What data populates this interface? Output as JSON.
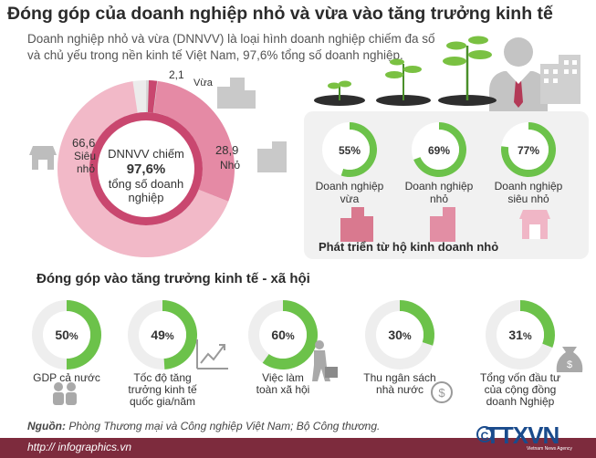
{
  "title": "Đóng góp của doanh nghiệp nhỏ và vừa vào tăng trưởng kinh tế",
  "intro": {
    "line1": "Doanh nghiệp nhỏ và vừa (DNNVV) là loại hình doanh nghiệp chiếm đa số",
    "line2": "và chủ yếu trong nền kinh tế Việt Nam, 97,6% tổng số doanh nghiệp."
  },
  "colors": {
    "accent_green": "#6cc24a",
    "pink_light": "#f2b9c8",
    "pink_mid": "#e58aa5",
    "pink_dark": "#c9476f",
    "maroon": "#7d2b3d"
  },
  "chart_data": [
    {
      "type": "pie",
      "categories": [
        "Siêu nhỏ",
        "Nhỏ",
        "Vừa"
      ],
      "values": [
        66.6,
        28.9,
        2.1
      ],
      "labels": {
        "vua_value": "2,1",
        "vua_name": "Vừa",
        "nho_value": "28,9",
        "nho_name": "Nhỏ",
        "sieunho_value": "66,6",
        "sieunho_name1": "Siêu",
        "sieunho_name2": "nhỏ"
      },
      "center": {
        "line1": "DNNVV chiếm",
        "value": "97,6",
        "unit": "%",
        "line2": "tổng số doanh",
        "line3": "nghiệp"
      }
    },
    {
      "type": "pie",
      "title": "Phát triển từ hộ kinh doanh nhỏ",
      "items": [
        {
          "value": 55,
          "pct_label": "55%",
          "label1": "Doanh nghiệp",
          "label2": "vừa"
        },
        {
          "value": 69,
          "pct_label": "69%",
          "label1": "Doanh nghiệp",
          "label2": "nhỏ"
        },
        {
          "value": 77,
          "pct_label": "77%",
          "label1": "Doanh nghiệp",
          "label2": "siêu nhỏ"
        }
      ]
    },
    {
      "type": "pie",
      "title": "Đóng góp vào tăng trưởng kinh tế - xã hội",
      "items": [
        {
          "value": 50,
          "num": "50",
          "unit": "%",
          "lines": [
            "GDP cả nước"
          ]
        },
        {
          "value": 49,
          "num": "49",
          "unit": "%",
          "lines": [
            "Tốc độ tăng",
            "trưởng kinh tế",
            "quốc gia/năm"
          ]
        },
        {
          "value": 60,
          "num": "60",
          "unit": "%",
          "lines": [
            "Việc làm",
            "toàn xã hội"
          ]
        },
        {
          "value": 30,
          "num": "30",
          "unit": "%",
          "lines": [
            "Thu ngân sách",
            "nhà nước"
          ]
        },
        {
          "value": 31,
          "num": "31",
          "unit": "%",
          "lines": [
            "Tổng vốn đầu tư",
            "của cộng đồng",
            "doanh Nghiệp"
          ]
        }
      ]
    }
  ],
  "source": {
    "label": "Nguồn:",
    "text": " Phòng Thương mại và Công nghiệp Việt Nam; Bộ Công thương."
  },
  "footer": {
    "url": "http:// infographics.vn",
    "logo": "TTXVN",
    "logo_sub": "Vietnam News Agency",
    "copyright": "C"
  },
  "icons": [
    "store-icon",
    "buildings-icon",
    "businessman-icon",
    "seedling-icon",
    "growth-chart-icon",
    "people-money-icon",
    "worker-icon",
    "coin-icon",
    "money-bag-icon"
  ]
}
